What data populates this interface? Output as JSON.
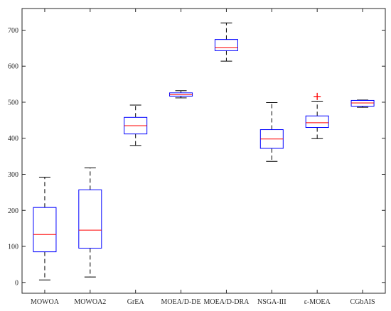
{
  "chart_data": {
    "type": "box",
    "title": "",
    "xlabel": "",
    "ylabel": "",
    "ylim": [
      -30,
      760
    ],
    "yticks": [
      0,
      100,
      200,
      300,
      400,
      500,
      600,
      700
    ],
    "ytick_labels": [
      "0",
      "100",
      "200",
      "300",
      "400",
      "500",
      "600",
      "700"
    ],
    "grid": false,
    "categories": [
      "MOWOA",
      "MOWOA2",
      "GrEA",
      "MOEA/D-DE",
      "MOEA/D-DRA",
      "NSGA-III",
      "ε-MOEA",
      "CGbAIS"
    ],
    "boxes": [
      {
        "whisker_low": 7,
        "q1": 85,
        "median": 133,
        "q3": 208,
        "whisker_high": 292,
        "outliers": []
      },
      {
        "whisker_low": 15,
        "q1": 95,
        "median": 145,
        "q3": 257,
        "whisker_high": 318,
        "outliers": []
      },
      {
        "whisker_low": 380,
        "q1": 412,
        "median": 435,
        "q3": 458,
        "whisker_high": 492,
        "outliers": []
      },
      {
        "whisker_low": 512,
        "q1": 517,
        "median": 521,
        "q3": 526,
        "whisker_high": 532,
        "outliers": []
      },
      {
        "whisker_low": 614,
        "q1": 643,
        "median": 652,
        "q3": 674,
        "whisker_high": 720,
        "outliers": []
      },
      {
        "whisker_low": 336,
        "q1": 372,
        "median": 398,
        "q3": 424,
        "whisker_high": 499,
        "outliers": []
      },
      {
        "whisker_low": 399,
        "q1": 430,
        "median": 443,
        "q3": 462,
        "whisker_high": 503,
        "outliers": [
          516
        ]
      },
      {
        "whisker_low": 486,
        "q1": 489,
        "median": 498,
        "q3": 505,
        "whisker_high": 506,
        "outliers": []
      }
    ],
    "colors": {
      "box": "#0000ff",
      "median": "#ff0000",
      "whisker": "#000000",
      "outlier": "#ff0000",
      "axis": "#262626"
    }
  }
}
